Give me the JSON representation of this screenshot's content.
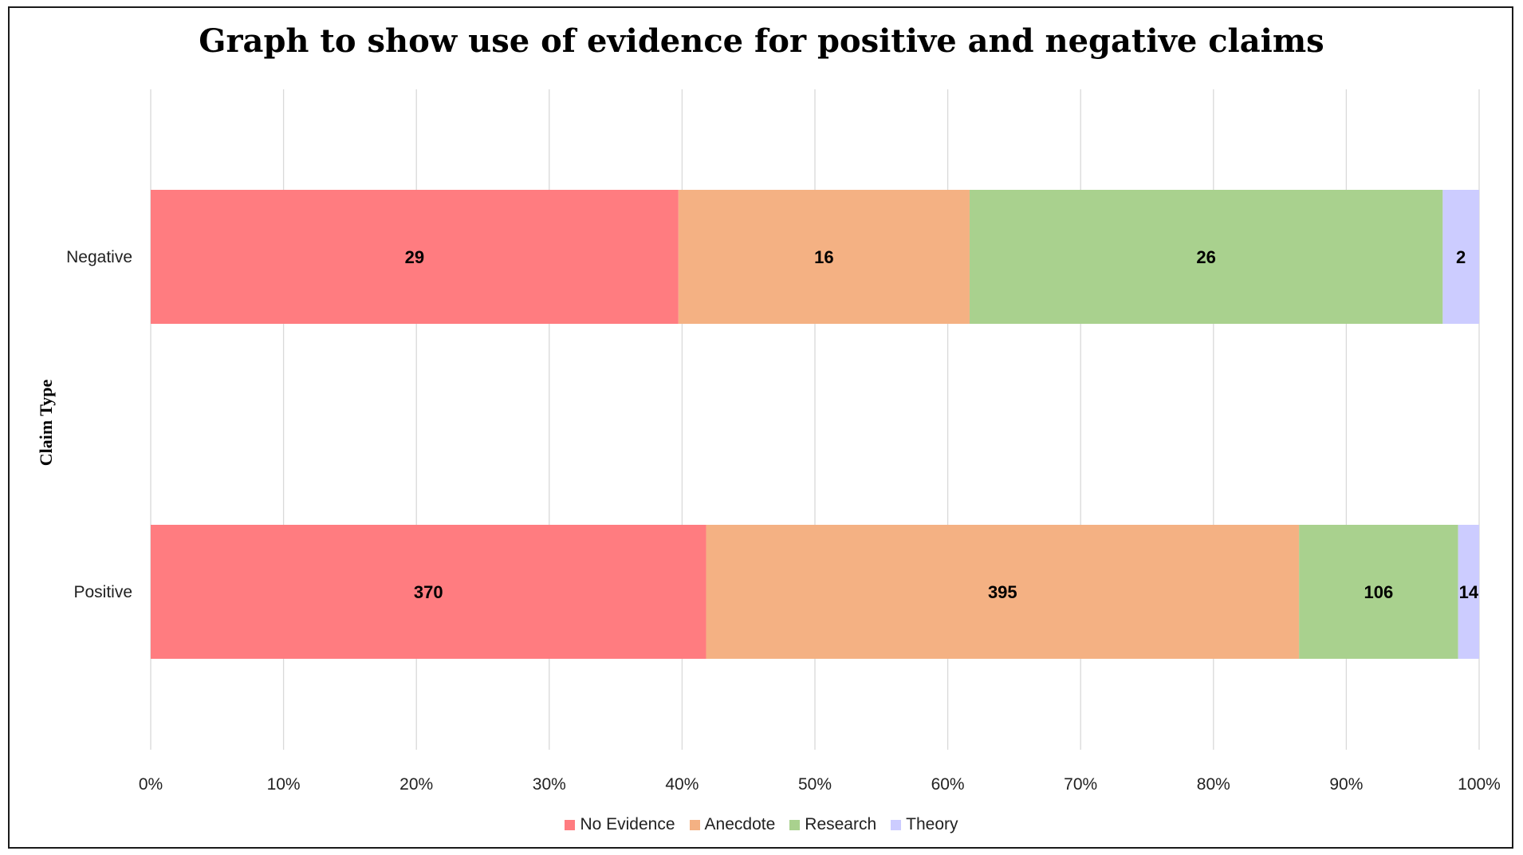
{
  "chart_data": {
    "type": "bar",
    "orientation": "horizontal",
    "stacked": "percent",
    "title": "Graph to show use of evidence for positive and negative claims",
    "xlabel": "",
    "ylabel": "Claim Type",
    "xlim": [
      0,
      100
    ],
    "x_ticks": [
      "0%",
      "10%",
      "20%",
      "30%",
      "40%",
      "50%",
      "60%",
      "70%",
      "80%",
      "90%",
      "100%"
    ],
    "grid": "vertical",
    "legend_position": "bottom",
    "categories": [
      "Negative",
      "Positive"
    ],
    "series": [
      {
        "name": "No Evidence",
        "color": "#ff7c80",
        "values": [
          29,
          370
        ]
      },
      {
        "name": "Anecdote",
        "color": "#f4b183",
        "values": [
          16,
          395
        ]
      },
      {
        "name": "Research",
        "color": "#a9d18e",
        "values": [
          26,
          106
        ]
      },
      {
        "name": "Theory",
        "color": "#ccccff",
        "values": [
          2,
          14
        ]
      }
    ]
  }
}
